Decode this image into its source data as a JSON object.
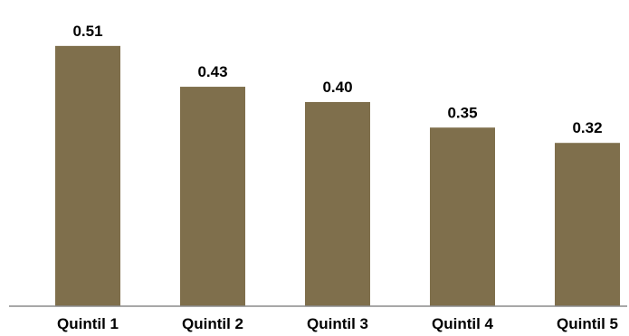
{
  "chart_data": {
    "type": "bar",
    "categories": [
      "Quintil 1",
      "Quintil 2",
      "Quintil 3",
      "Quintil 4",
      "Quintil 5"
    ],
    "values": [
      0.51,
      0.43,
      0.4,
      0.35,
      0.32
    ],
    "value_labels": [
      "0.51",
      "0.43",
      "0.40",
      "0.35",
      "0.32"
    ],
    "title": "",
    "xlabel": "",
    "ylabel": "",
    "ylim": [
      0,
      0.6
    ],
    "grid": false,
    "legend": "none",
    "bar_color": "#7f6f4c",
    "axis_color": "#8c8c8c"
  }
}
